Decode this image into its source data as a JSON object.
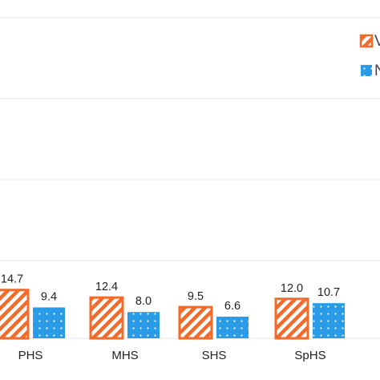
{
  "chart_data": {
    "type": "bar",
    "categories": [
      "PHS",
      "MHS",
      "SHS",
      "SpHS"
    ],
    "series": [
      {
        "name": "V",
        "values": [
          14.7,
          12.4,
          9.5,
          12.0
        ],
        "color": "#f26b2a",
        "pattern": "diagonal-stripes"
      },
      {
        "name": "N",
        "values": [
          9.4,
          8.0,
          6.6,
          10.7
        ],
        "color": "#2a9be6",
        "pattern": "dots"
      }
    ],
    "data_labels": {
      "V": [
        "14.7",
        "12.4",
        "9.5",
        "12.0"
      ],
      "N": [
        "9.4",
        "8.0",
        "6.6",
        "10.7"
      ]
    },
    "title": "",
    "xlabel": "",
    "ylabel": "",
    "grid": true,
    "legend_position": "top-right",
    "colors": {
      "series_a": "#f26b2a",
      "series_b": "#2a9be6",
      "grid": "#e6e6e6"
    }
  }
}
